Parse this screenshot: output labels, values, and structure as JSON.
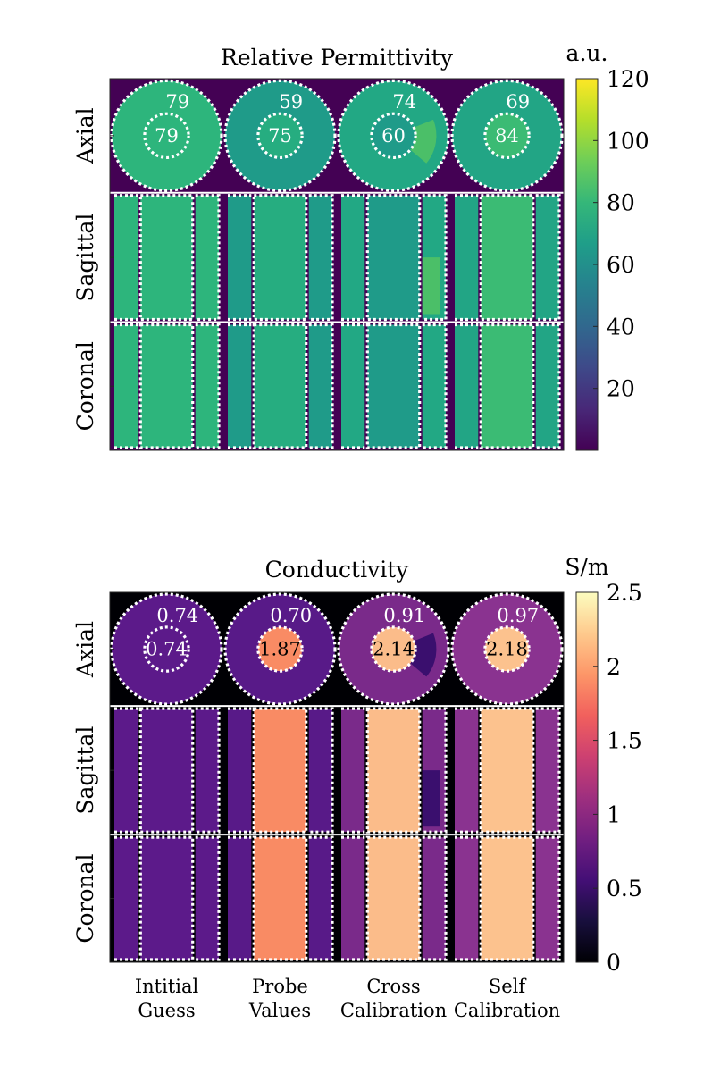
{
  "chart_data": [
    {
      "type": "heatmap",
      "title": "Relative Permittivity",
      "colorbar": {
        "unit": "a.u.",
        "colormap": "viridis",
        "range": [
          0,
          120
        ],
        "ticks": [
          "20",
          "40",
          "60",
          "80",
          "100",
          "120"
        ]
      },
      "background_color": "#440154",
      "row_labels": [
        "Axial",
        "Sagittal",
        "Coronal"
      ],
      "columns": [
        {
          "name": "Intitial Guess",
          "outer_value": 79,
          "inner_value": 79,
          "outer_label": "79",
          "inner_label": "79",
          "outer_color": "#2db57c",
          "inner_color": "#2db57c",
          "inner_label_color": "#ffffff"
        },
        {
          "name": "Probe Values",
          "outer_value": 59,
          "inner_value": 75,
          "outer_label": "59",
          "inner_label": "75",
          "outer_color": "#1f9b89",
          "inner_color": "#26ad80",
          "inner_label_color": "#ffffff"
        },
        {
          "name": "Cross Calibration",
          "outer_value": 74,
          "inner_value": 60,
          "outer_label": "74",
          "inner_label": "60",
          "outer_color": "#22a884",
          "inner_color": "#1f9b89",
          "inner_label_color": "#ffffff",
          "wedge_value": 92,
          "wedge_color": "#4bbf68"
        },
        {
          "name": "Self Calibration",
          "outer_value": 69,
          "inner_value": 84,
          "outer_label": "69",
          "inner_label": "84",
          "outer_color": "#22a585",
          "inner_color": "#3bbb74",
          "inner_label_color": "#ffffff"
        }
      ]
    },
    {
      "type": "heatmap",
      "title": "Conductivity",
      "colorbar": {
        "unit": "S/m",
        "colormap": "magma",
        "range": [
          0,
          2.5
        ],
        "ticks": [
          "0",
          "0.5",
          "1",
          "1.5",
          "2",
          "2.5"
        ]
      },
      "background_color": "#000004",
      "row_labels": [
        "Axial",
        "Sagittal",
        "Coronal"
      ],
      "columns": [
        {
          "name": "Intitial Guess",
          "outer_value": 0.74,
          "inner_value": 0.74,
          "outer_label": "0.74",
          "inner_label": "0.74",
          "outer_color": "#5c1a8a",
          "inner_color": "#5c1a8a",
          "inner_label_color": "#ffffff"
        },
        {
          "name": "Probe Values",
          "outer_value": 0.7,
          "inner_value": 1.87,
          "outer_label": "0.70",
          "inner_label": "1.87",
          "outer_color": "#581a88",
          "inner_color": "#f98b64",
          "inner_label_color": "#000000"
        },
        {
          "name": "Cross Calibration",
          "outer_value": 0.91,
          "inner_value": 2.14,
          "outer_label": "0.91",
          "inner_label": "2.14",
          "outer_color": "#7a2a8a",
          "inner_color": "#fbbc8a",
          "inner_label_color": "#000000",
          "wedge_value": 0.45,
          "wedge_color": "#3a0f6e"
        },
        {
          "name": "Self Calibration",
          "outer_value": 0.97,
          "inner_value": 2.18,
          "outer_label": "0.97",
          "inner_label": "2.18",
          "outer_color": "#8a3390",
          "inner_color": "#fcc28e",
          "inner_label_color": "#000000"
        }
      ]
    }
  ],
  "column_labels": [
    [
      "Intitial",
      "Guess"
    ],
    [
      "Probe",
      "Values"
    ],
    [
      "Cross",
      "Calibration"
    ],
    [
      "Self",
      "Calibration"
    ]
  ]
}
